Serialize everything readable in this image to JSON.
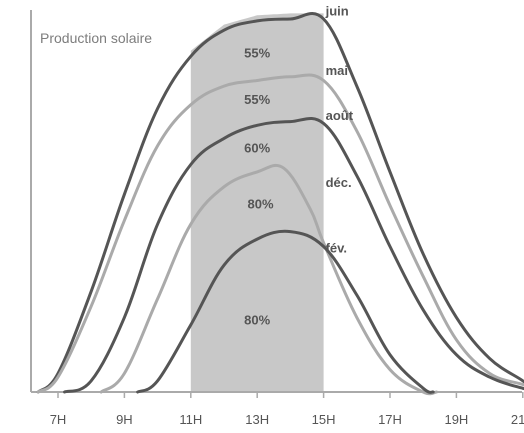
{
  "chart_data": {
    "type": "area",
    "title": "",
    "ylabel": "Production solaire",
    "xlabel": "",
    "x_ticks": [
      {
        "h": 7,
        "label": "7H"
      },
      {
        "h": 9,
        "label": "9H"
      },
      {
        "h": 11,
        "label": "11H"
      },
      {
        "h": 13,
        "label": "13H"
      },
      {
        "h": 15,
        "label": "15H"
      },
      {
        "h": 17,
        "label": "17H"
      },
      {
        "h": 19,
        "label": "19H"
      },
      {
        "h": 21,
        "label": "21H"
      }
    ],
    "xlim": [
      6.2,
      22.2
    ],
    "ylim": [
      0,
      1
    ],
    "highlight_window": {
      "from": 11,
      "to": 15,
      "color": "#c8c8c8"
    },
    "series": [
      {
        "name": "juin",
        "color": "#555555",
        "points": [
          [
            6.4,
            0
          ],
          [
            7,
            0.05
          ],
          [
            8,
            0.27
          ],
          [
            9,
            0.53
          ],
          [
            10,
            0.76
          ],
          [
            11,
            0.9
          ],
          [
            12,
            0.97
          ],
          [
            13,
            0.995
          ],
          [
            14,
            1
          ],
          [
            15,
            1
          ],
          [
            16,
            0.82
          ],
          [
            17,
            0.59
          ],
          [
            18,
            0.37
          ],
          [
            19,
            0.2
          ],
          [
            20,
            0.09
          ],
          [
            21,
            0.03
          ],
          [
            21.4,
            0
          ]
        ]
      },
      {
        "name": "mai",
        "color": "#aaaaaa",
        "points": [
          [
            6.4,
            0
          ],
          [
            7,
            0.04
          ],
          [
            8,
            0.23
          ],
          [
            9,
            0.46
          ],
          [
            10,
            0.66
          ],
          [
            11,
            0.77
          ],
          [
            12,
            0.82
          ],
          [
            13,
            0.835
          ],
          [
            14,
            0.845
          ],
          [
            15,
            0.835
          ],
          [
            16,
            0.7
          ],
          [
            17,
            0.5
          ],
          [
            18,
            0.31
          ],
          [
            19,
            0.14
          ],
          [
            20,
            0.05
          ],
          [
            21,
            0.02
          ],
          [
            21.7,
            0
          ]
        ]
      },
      {
        "name": "août",
        "color": "#555555",
        "points": [
          [
            7.2,
            0
          ],
          [
            8,
            0.03
          ],
          [
            9,
            0.2
          ],
          [
            10,
            0.45
          ],
          [
            11,
            0.61
          ],
          [
            12,
            0.68
          ],
          [
            13,
            0.715
          ],
          [
            14,
            0.725
          ],
          [
            15,
            0.72
          ],
          [
            16,
            0.58
          ],
          [
            17,
            0.39
          ],
          [
            18,
            0.22
          ],
          [
            19,
            0.1
          ],
          [
            20,
            0.04
          ],
          [
            21,
            0.01
          ],
          [
            21.6,
            0
          ]
        ]
      },
      {
        "name": "déc.",
        "color": "#aaaaaa",
        "points": [
          [
            8.3,
            0
          ],
          [
            9,
            0.05
          ],
          [
            10,
            0.25
          ],
          [
            11,
            0.45
          ],
          [
            12,
            0.55
          ],
          [
            13,
            0.59
          ],
          [
            13.8,
            0.6
          ],
          [
            14.6,
            0.49
          ],
          [
            15,
            0.4
          ],
          [
            16,
            0.2
          ],
          [
            17,
            0.06
          ],
          [
            18,
            0
          ],
          [
            18.4,
            0
          ]
        ]
      },
      {
        "name": "fév.",
        "color": "#555555",
        "points": [
          [
            9.4,
            0
          ],
          [
            10,
            0.03
          ],
          [
            11,
            0.18
          ],
          [
            12,
            0.34
          ],
          [
            13,
            0.41
          ],
          [
            14,
            0.43
          ],
          [
            15,
            0.39
          ],
          [
            16,
            0.26
          ],
          [
            17,
            0.1
          ],
          [
            18,
            0.01
          ],
          [
            18.3,
            0
          ]
        ]
      }
    ],
    "series_labels": [
      {
        "series": "juin",
        "text": "juin",
        "x": 15.0,
        "y": 1.02
      },
      {
        "series": "mai",
        "text": "mai",
        "x": 15.0,
        "y": 0.86
      },
      {
        "series": "août",
        "text": "août",
        "x": 15.0,
        "y": 0.74
      },
      {
        "series": "déc.",
        "text": "déc.",
        "x": 15.0,
        "y": 0.56
      },
      {
        "series": "fév.",
        "text": "fév.",
        "x": 15.0,
        "y": 0.385
      }
    ],
    "annotations": [
      {
        "text": "55%",
        "x": 13.0,
        "y": 0.91
      },
      {
        "text": "55%",
        "x": 13.0,
        "y": 0.785
      },
      {
        "text": "60%",
        "x": 13.0,
        "y": 0.655
      },
      {
        "text": "80%",
        "x": 13.1,
        "y": 0.505
      },
      {
        "text": "80%",
        "x": 13.0,
        "y": 0.195
      }
    ]
  }
}
